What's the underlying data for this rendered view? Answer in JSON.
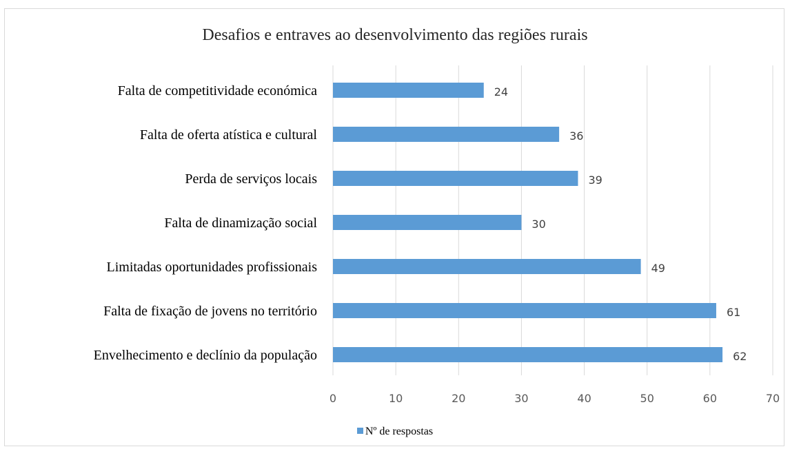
{
  "chart_data": {
    "type": "bar",
    "orientation": "horizontal",
    "title": "Desafios e entraves ao desenvolvimento das regiões rurais",
    "categories": [
      "Falta de competitividade económica",
      "Falta de oferta atística e cultural",
      "Perda de serviços locais",
      "Falta de dinamização social",
      "Limitadas oportunidades profissionais",
      "Falta de fixação de jovens no território",
      "Envelhecimento e declínio da população"
    ],
    "series": [
      {
        "name": "Nº de respostas",
        "values": [
          24,
          36,
          39,
          30,
          49,
          61,
          62
        ],
        "color": "#5b9bd5"
      }
    ],
    "xlim": [
      0,
      70
    ],
    "xticks": [
      0,
      10,
      20,
      30,
      40,
      50,
      60,
      70
    ],
    "grid": true,
    "legend_position": "bottom",
    "data_labels": true
  }
}
